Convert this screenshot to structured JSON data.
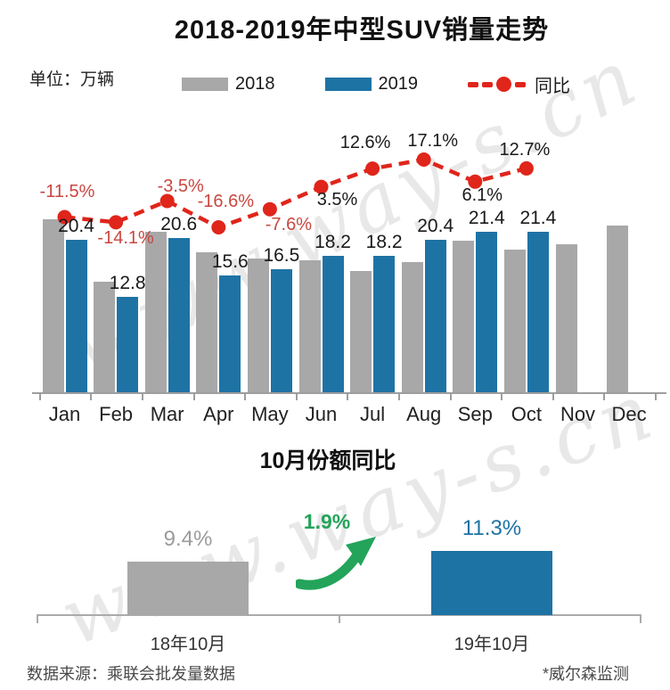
{
  "watermark": {
    "text": "www.way-s.cn"
  },
  "header": {
    "title": "2018-2019年中型SUV销量走势",
    "unit_label": "单位：万辆"
  },
  "legend": {
    "items": [
      {
        "label": "2018",
        "color": "#A8A8A8",
        "marker": "bar"
      },
      {
        "label": "2019",
        "color": "#1E73A5",
        "marker": "bar"
      },
      {
        "label": "同比",
        "color": "#E0251B",
        "marker": "dashed-line-dot"
      }
    ]
  },
  "chart_data": [
    {
      "type": "bar",
      "title": "2018-2019年中型SUV销量走势",
      "unit": "万辆",
      "grid": false,
      "y_axis_shown": false,
      "legend_position": "top",
      "categories": [
        "Jan",
        "Feb",
        "Mar",
        "Apr",
        "May",
        "Jun",
        "Jul",
        "Aug",
        "Sep",
        "Oct",
        "Nov",
        "Dec"
      ],
      "series": [
        {
          "name": "2018",
          "color": "#A8A8A8",
          "data_labels_shown": false,
          "note": "no data labels in chart; values estimated from bar heights",
          "values": [
            23.1,
            14.8,
            21.4,
            18.7,
            17.9,
            17.6,
            16.2,
            17.4,
            20.2,
            19.0,
            19.8,
            22.3
          ]
        },
        {
          "name": "2019",
          "color": "#1E73A5",
          "data_labels_shown": true,
          "values": [
            20.4,
            12.8,
            20.6,
            15.6,
            16.5,
            18.2,
            18.2,
            20.4,
            21.4,
            21.4,
            null,
            null
          ]
        }
      ],
      "line_series": {
        "name": "同比",
        "unit": "%",
        "color": "#E0251B",
        "style": "dashed-with-dot-markers",
        "negative_label_color": "#C84740",
        "positive_label_color": "#1A1A1A",
        "values": [
          -11.5,
          -14.1,
          -3.5,
          -16.6,
          -7.6,
          3.5,
          12.6,
          17.1,
          6.1,
          12.7,
          null,
          null
        ]
      }
    },
    {
      "type": "bar",
      "title": "10月份额同比",
      "grid": false,
      "y_axis_shown": false,
      "categories": [
        "18年10月",
        "19年10月"
      ],
      "values": [
        9.4,
        11.3
      ],
      "value_labels": [
        "9.4%",
        "11.3%"
      ],
      "bar_colors": [
        "#A8A8A8",
        "#1E73A5"
      ],
      "label_colors": [
        "#9B9B9B",
        "#1E73A5"
      ],
      "delta": {
        "label": "1.9%",
        "color": "#23A45A"
      }
    }
  ],
  "footer": {
    "source": "数据来源：乘联会批发量数据",
    "note": "*威尔森监测"
  }
}
